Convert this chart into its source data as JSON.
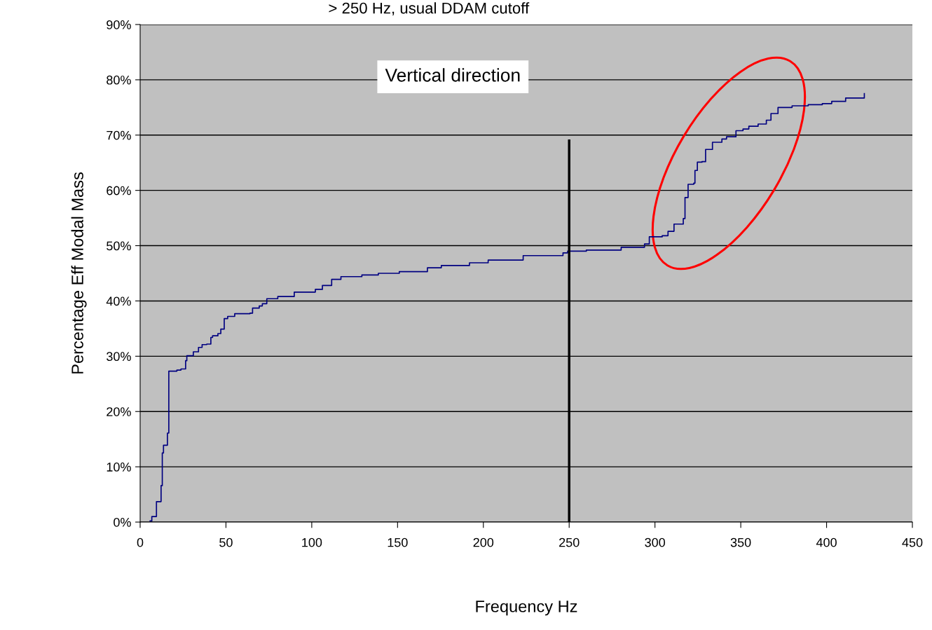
{
  "chart_data": {
    "type": "step",
    "title": "> 250 Hz, usual DDAM cutoff",
    "xlabel": "Frequency Hz",
    "ylabel": "Percentage Eff Modal Mass",
    "annotations": [
      "Vertical direction"
    ],
    "xlim": [
      0,
      450
    ],
    "xticks": [
      0,
      50,
      100,
      150,
      200,
      250,
      300,
      350,
      400,
      450
    ],
    "ylim": [
      0,
      90
    ],
    "yticks": [
      {
        "value": 0,
        "label": "0%"
      },
      {
        "value": 10,
        "label": "10%"
      },
      {
        "value": 20,
        "label": "20%"
      },
      {
        "value": 30,
        "label": "30%"
      },
      {
        "value": 40,
        "label": "40%"
      },
      {
        "value": 50,
        "label": "50%"
      },
      {
        "value": 60,
        "label": "60%"
      },
      {
        "value": 70,
        "label": "70%"
      },
      {
        "value": 80,
        "label": "80%"
      },
      {
        "value": 90,
        "label": "90%"
      }
    ],
    "grid": "y",
    "legend": false,
    "series": [
      {
        "color": "#000080",
        "x": [
          5.8,
          6.8,
          9.5,
          12.2,
          12.9,
          13.6,
          15.9,
          16.7,
          21.4,
          23.8,
          26.5,
          27.2,
          31.0,
          34.0,
          36.1,
          38.8,
          41.2,
          42.2,
          45.3,
          47,
          49,
          51,
          55.1,
          64,
          65.5,
          69.4,
          71.2,
          73.8,
          80.2,
          89.8,
          102.1,
          106.2,
          111.6,
          117,
          129.2,
          138.8,
          151,
          167.4,
          175.5,
          191.9,
          202.8,
          223.2,
          246.4,
          249.1,
          260,
          280.3,
          293.9,
          296.7,
          304.2,
          307.6,
          311.1,
          316.5,
          317.5,
          319.3,
          322.6,
          323.3,
          324.7,
          327.4,
          329.5,
          333.5,
          339,
          341.7,
          347.2,
          351.3,
          354.7,
          360.1,
          364.9,
          367.6,
          371.7,
          379.9,
          389.3,
          397.5,
          403,
          411.1,
          422
        ],
        "values": [
          0.2,
          1.0,
          3.7,
          6.6,
          12.5,
          13.9,
          16.1,
          27.3,
          27.5,
          27.7,
          29.2,
          30.1,
          30.8,
          31.6,
          32.1,
          32.2,
          33.4,
          33.7,
          34.1,
          34.9,
          36.8,
          37.2,
          37.7,
          37.8,
          38.7,
          39.1,
          39.5,
          40.4,
          40.8,
          41.6,
          42.1,
          42.8,
          43.9,
          44.4,
          44.7,
          45.0,
          45.3,
          46.0,
          46.4,
          46.9,
          47.4,
          48.2,
          48.7,
          49.0,
          49.2,
          49.7,
          50.3,
          51.6,
          51.8,
          52.6,
          53.9,
          54.9,
          58.7,
          61.1,
          61.3,
          63.6,
          65.1,
          65.2,
          67.4,
          68.7,
          69.3,
          69.7,
          70.8,
          71.1,
          71.6,
          72.0,
          72.7,
          73.9,
          75.0,
          75.3,
          75.5,
          75.7,
          76.1,
          76.7,
          77.5
        ]
      },
      {
        "type": "line",
        "color": "#000000",
        "x": [
          250,
          250
        ],
        "values": [
          0,
          69
        ]
      }
    ]
  }
}
